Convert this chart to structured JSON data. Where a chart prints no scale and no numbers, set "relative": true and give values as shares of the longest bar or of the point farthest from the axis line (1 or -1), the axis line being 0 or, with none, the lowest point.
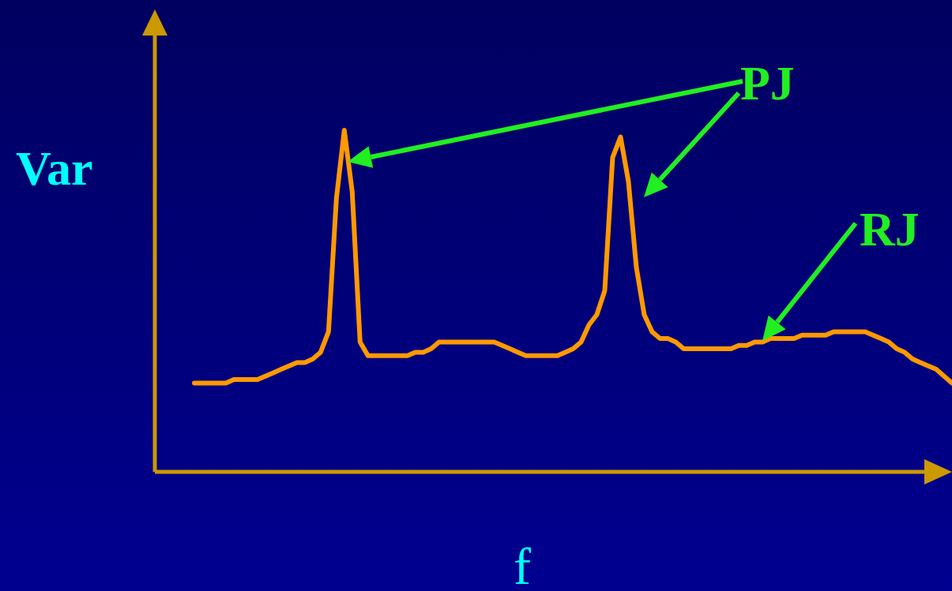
{
  "chart_data": {
    "type": "line",
    "relative": true,
    "xlabel": "f",
    "ylabel": "Var",
    "color": "#ff9900",
    "legend": false,
    "marker": "none",
    "line_style": "solid",
    "categories": [
      null,
      null,
      null,
      null,
      null,
      null,
      null,
      null,
      null,
      null,
      null,
      null,
      null,
      null,
      null,
      null,
      null,
      null,
      null,
      null,
      null,
      null,
      null,
      null,
      null,
      null,
      null,
      null,
      null,
      null,
      null,
      null,
      null,
      null,
      null,
      null,
      null,
      null,
      null,
      null,
      null,
      null,
      null,
      null,
      null,
      null,
      null,
      null,
      null,
      null,
      null,
      null,
      null,
      null,
      null,
      null,
      null,
      null,
      null,
      null,
      null,
      null,
      null,
      null,
      null,
      null,
      null,
      null,
      null,
      null,
      null,
      null,
      null,
      null,
      null,
      null,
      null,
      null,
      null,
      null,
      null,
      null,
      null,
      null,
      null,
      null,
      null,
      null,
      null,
      null,
      null,
      null,
      null,
      null,
      null,
      null,
      null
    ],
    "values": [
      0.26,
      0.26,
      0.26,
      0.26,
      0.26,
      0.27,
      0.27,
      0.27,
      0.27,
      0.28,
      0.29,
      0.3,
      0.31,
      0.32,
      0.32,
      0.33,
      0.35,
      0.41,
      0.8,
      1.0,
      0.82,
      0.38,
      0.34,
      0.34,
      0.34,
      0.34,
      0.34,
      0.34,
      0.35,
      0.35,
      0.36,
      0.38,
      0.38,
      0.38,
      0.38,
      0.38,
      0.38,
      0.38,
      0.38,
      0.37,
      0.36,
      0.35,
      0.34,
      0.34,
      0.34,
      0.34,
      0.34,
      0.35,
      0.36,
      0.38,
      0.43,
      0.46,
      0.53,
      0.92,
      0.98,
      0.85,
      0.6,
      0.46,
      0.41,
      0.39,
      0.39,
      0.38,
      0.36,
      0.36,
      0.36,
      0.36,
      0.36,
      0.36,
      0.36,
      0.37,
      0.37,
      0.38,
      0.38,
      0.39,
      0.39,
      0.39,
      0.39,
      0.4,
      0.4,
      0.4,
      0.4,
      0.41,
      0.41,
      0.41,
      0.41,
      0.41,
      0.4,
      0.39,
      0.38,
      0.36,
      0.35,
      0.33,
      0.32,
      0.31,
      0.3,
      0.28,
      0.26
    ],
    "annotations": [
      "PJ",
      "RJ"
    ]
  }
}
